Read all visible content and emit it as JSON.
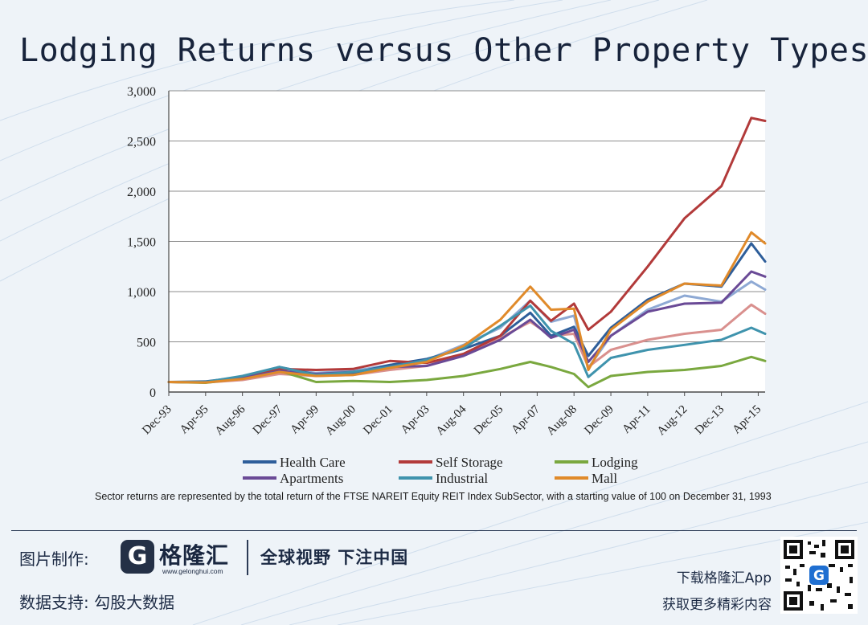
{
  "title": "Lodging Returns versus Other Property Types",
  "footnote": "Sector returns are represented by the total return of the FTSE NAREIT Equity REIT Index SubSector, with a starting value of 100 on December 31, 1993",
  "watermark": "格隆汇",
  "footer": {
    "credit_label": "图片制作:",
    "logo_mark": "G",
    "logo_text": "格隆汇",
    "logo_url": "www.gelonghui.com",
    "slogan": "全球视野 下注中国",
    "data_label": "数据支持:  勾股大数据",
    "app_line1": "下载格隆汇App",
    "app_line2": "获取更多精彩内容"
  },
  "chart_data": {
    "type": "line",
    "title": "",
    "xlabel": "",
    "ylabel": "",
    "ylim": [
      0,
      3000
    ],
    "yticks": [
      0,
      500,
      1000,
      1500,
      2000,
      2500,
      3000
    ],
    "ytick_labels": [
      "0",
      "500",
      "1,000",
      "1,500",
      "2,000",
      "2,500",
      "3,000"
    ],
    "xlim": [
      1993.917,
      2015.5
    ],
    "xticks": [
      {
        "label": "Dec-93",
        "x": 1993.917
      },
      {
        "label": "Apr-95",
        "x": 1995.25
      },
      {
        "label": "Aug-96",
        "x": 1996.583
      },
      {
        "label": "Dec-97",
        "x": 1997.917
      },
      {
        "label": "Apr-99",
        "x": 1999.25
      },
      {
        "label": "Aug-00",
        "x": 2000.583
      },
      {
        "label": "Dec-01",
        "x": 2001.917
      },
      {
        "label": "Apr-03",
        "x": 2003.25
      },
      {
        "label": "Aug-04",
        "x": 2004.583
      },
      {
        "label": "Dec-05",
        "x": 2005.917
      },
      {
        "label": "Apr-07",
        "x": 2007.25
      },
      {
        "label": "Aug-08",
        "x": 2008.583
      },
      {
        "label": "Dec-09",
        "x": 2009.917
      },
      {
        "label": "Apr-11",
        "x": 2011.25
      },
      {
        "label": "Aug-12",
        "x": 2012.583
      },
      {
        "label": "Dec-13",
        "x": 2013.917
      },
      {
        "label": "Apr-15",
        "x": 2015.25
      }
    ],
    "grid": true,
    "legend_position": "bottom",
    "x": [
      1993.917,
      1995.25,
      1996.583,
      1997.917,
      1999.25,
      2000.583,
      2001.917,
      2003.25,
      2004.583,
      2005.917,
      2007.0,
      2007.75,
      2008.583,
      2009.1,
      2009.917,
      2011.25,
      2012.583,
      2013.917,
      2015.0,
      2015.5
    ],
    "series": [
      {
        "name": "Health Care",
        "color": "#2e5e9a",
        "values": [
          100,
          105,
          150,
          250,
          175,
          190,
          270,
          330,
          430,
          560,
          790,
          560,
          650,
          360,
          640,
          920,
          1080,
          1050,
          1480,
          1300
        ]
      },
      {
        "name": "Self Storage",
        "color": "#b23a3a",
        "values": [
          100,
          95,
          140,
          230,
          220,
          230,
          310,
          290,
          380,
          560,
          910,
          710,
          880,
          620,
          800,
          1250,
          1730,
          2050,
          2730,
          2700
        ]
      },
      {
        "name": "Lodging",
        "color": "#7aa83f",
        "values": [
          100,
          92,
          135,
          210,
          100,
          110,
          100,
          120,
          160,
          230,
          300,
          250,
          180,
          50,
          160,
          200,
          220,
          260,
          350,
          310
        ]
      },
      {
        "name": "Apartments",
        "color": "#6a4a96",
        "values": [
          100,
          100,
          140,
          210,
          180,
          200,
          250,
          260,
          360,
          520,
          720,
          540,
          620,
          300,
          560,
          800,
          880,
          890,
          1200,
          1150
        ]
      },
      {
        "name": "Industrial",
        "color": "#3f93ad",
        "values": [
          100,
          100,
          160,
          250,
          170,
          200,
          250,
          320,
          440,
          660,
          860,
          610,
          480,
          150,
          340,
          420,
          470,
          520,
          640,
          580
        ]
      },
      {
        "name": "Mall",
        "color": "#e08a2a",
        "values": [
          100,
          95,
          130,
          200,
          160,
          170,
          240,
          300,
          460,
          720,
          1050,
          820,
          830,
          220,
          620,
          900,
          1080,
          1060,
          1590,
          1480
        ]
      }
    ],
    "uncaptioned_series": [
      {
        "color": "#8ea9d4",
        "values": [
          100,
          100,
          150,
          240,
          190,
          210,
          270,
          320,
          470,
          640,
          910,
          700,
          760,
          240,
          560,
          820,
          960,
          900,
          1100,
          1020
        ]
      },
      {
        "color": "#d9908e",
        "values": [
          100,
          95,
          120,
          180,
          160,
          170,
          220,
          260,
          380,
          540,
          700,
          560,
          580,
          250,
          420,
          520,
          580,
          620,
          870,
          780
        ]
      }
    ]
  }
}
